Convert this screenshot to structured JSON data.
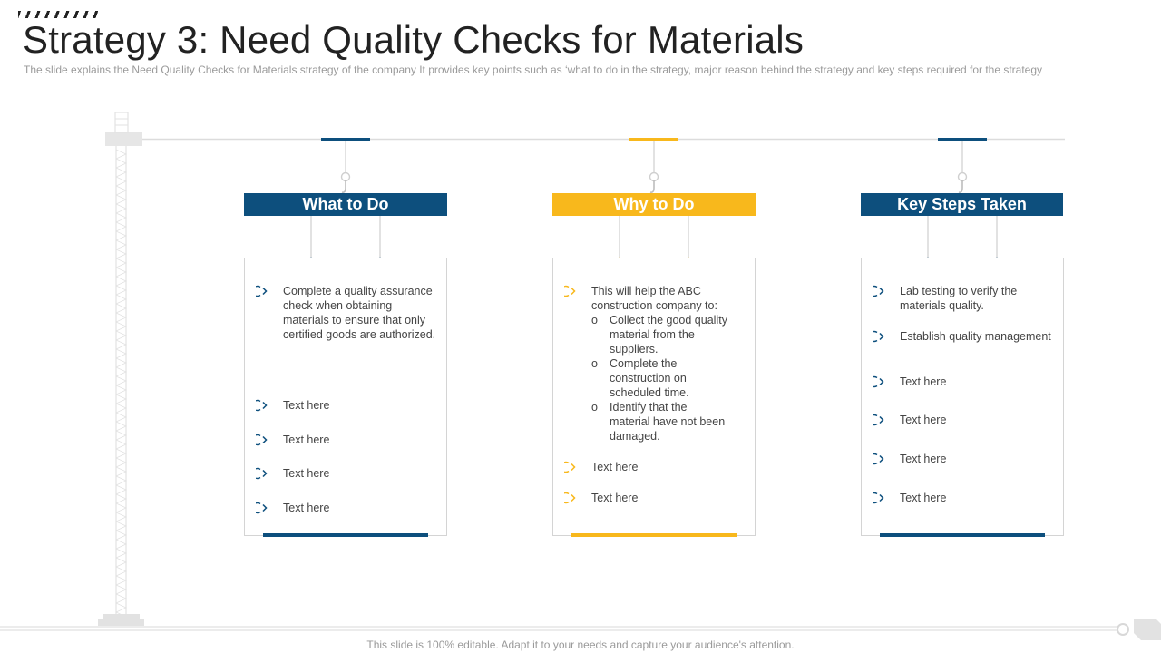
{
  "slide": {
    "title": "Strategy 3: Need Quality Checks for Materials",
    "subtitle": "The slide explains the Need Quality Checks for Materials strategy of the company It provides  key points such as ‘what to do in the strategy, major reason behind the strategy and key steps required  for the strategy",
    "footer": "This slide is 100% editable. Adapt it to your needs and capture your audience's attention."
  },
  "colors": {
    "blue": "#0d4f7d",
    "yellow": "#f8b81c"
  },
  "icons": {
    "bullet": "chevron-circle-icon",
    "decoration": "tower-crane-icon"
  },
  "columns": [
    {
      "title": "What to Do",
      "items": [
        "Complete a quality assurance check when obtaining materials to ensure that only certified goods are authorized.",
        "Text here",
        "Text here",
        "Text here",
        "Text here"
      ]
    },
    {
      "title": "Why to Do",
      "intro": "This will help the ABC construction company to:",
      "sub_items": [
        "Collect the good quality material from the suppliers.",
        "Complete the construction on scheduled time.",
        "Identify that the material have not been damaged."
      ],
      "sub_marker": "o",
      "items": [
        "Text here",
        "Text here"
      ]
    },
    {
      "title": "Key Steps Taken",
      "items": [
        "Lab testing to verify the materials quality.",
        "Establish quality management",
        "Text here",
        "Text here",
        "Text here",
        "Text here"
      ]
    }
  ]
}
